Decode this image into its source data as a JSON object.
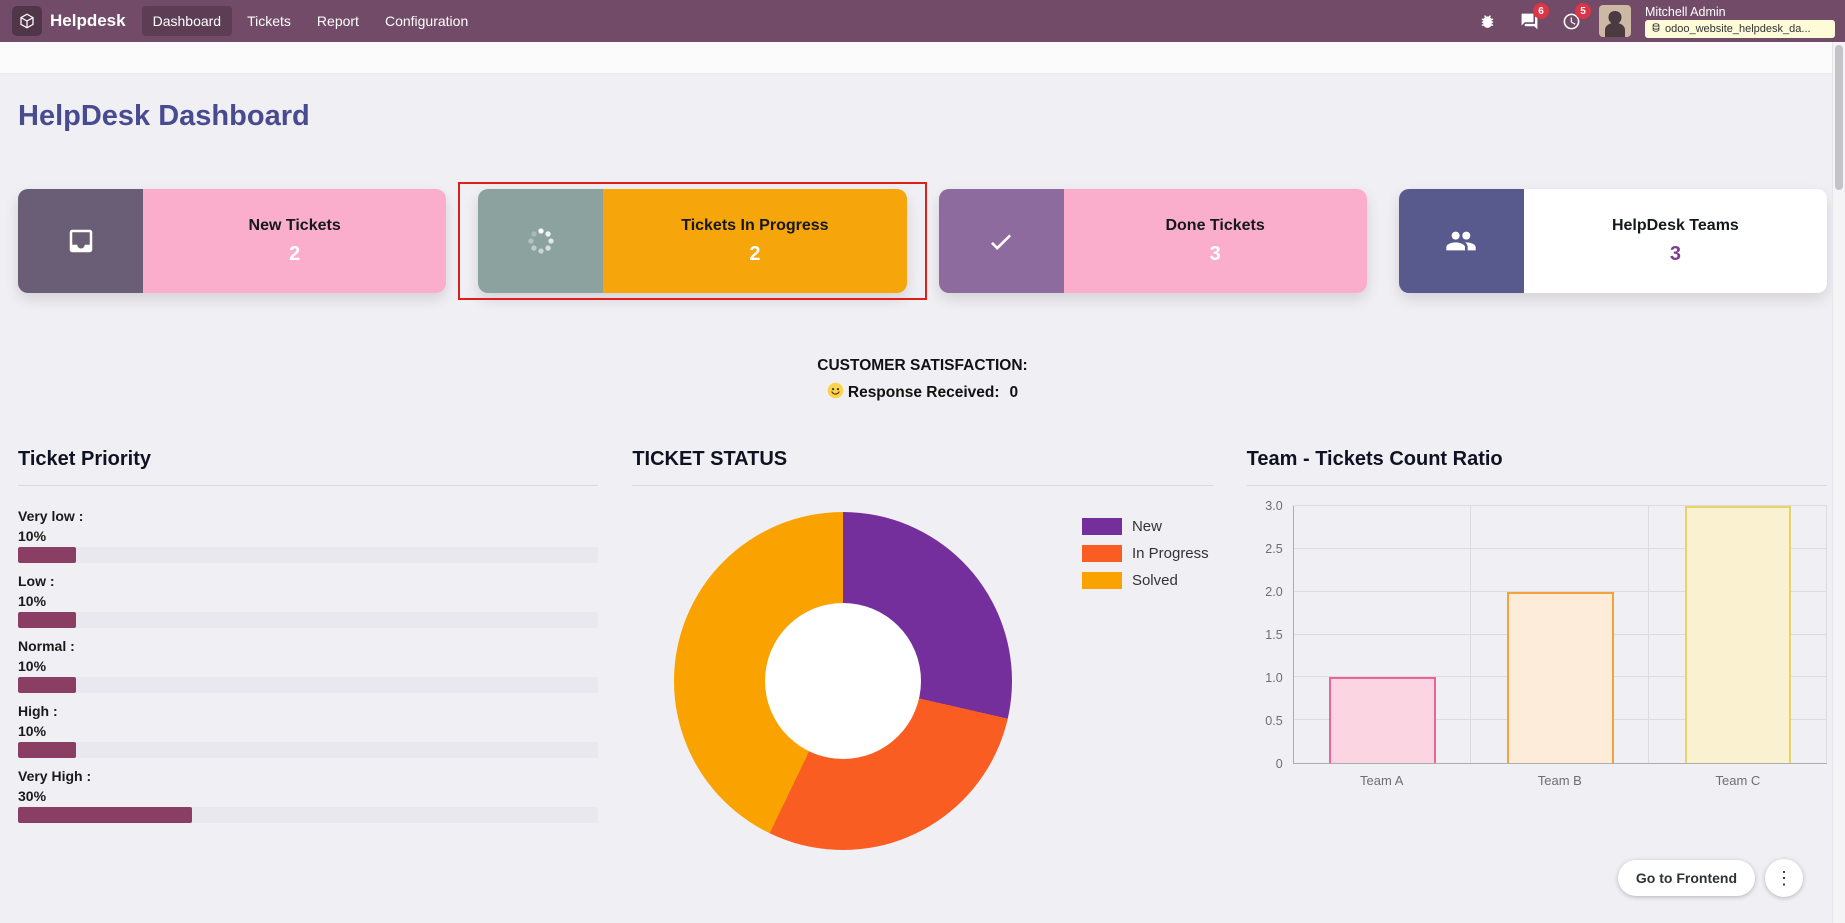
{
  "topbar": {
    "app_name": "Helpdesk",
    "menu": [
      {
        "label": "Dashboard",
        "active": true
      },
      {
        "label": "Tickets",
        "active": false
      },
      {
        "label": "Report",
        "active": false
      },
      {
        "label": "Configuration",
        "active": false
      }
    ],
    "messages_badge": "6",
    "activities_badge": "5",
    "user_name": "Mitchell Admin",
    "database": "odoo_website_helpdesk_da..."
  },
  "page": {
    "title": "HelpDesk Dashboard"
  },
  "cards": [
    {
      "label": "New Tickets",
      "count": "2",
      "icon": "inbox-icon",
      "icon_bg": "#6a5e77",
      "body_bg": "#fbaecb",
      "count_color": "#ffffff",
      "highlight": false
    },
    {
      "label": "Tickets In Progress",
      "count": "2",
      "icon": "spinner-icon",
      "icon_bg": "#8ba29e",
      "body_bg": "#f6a50b",
      "count_color": "#ffffff",
      "highlight": true
    },
    {
      "label": "Done Tickets",
      "count": "3",
      "icon": "check-icon",
      "icon_bg": "#8e6b9e",
      "body_bg": "#fbaecb",
      "count_color": "#ffffff",
      "highlight": false
    },
    {
      "label": "HelpDesk Teams",
      "count": "3",
      "icon": "users-icon",
      "icon_bg": "#585a8d",
      "body_bg": "#ffffff",
      "count_color": "#7e3f8f",
      "highlight": false
    }
  ],
  "satisfaction": {
    "title": "CUSTOMER SATISFACTION:",
    "icon": "smiley-icon",
    "response_label": "Response Received:",
    "response_value": "0"
  },
  "priority_panel": {
    "title": "Ticket Priority",
    "bar_color": "#8a3e63",
    "track_color": "#e8e8ee",
    "items": [
      {
        "label": "Very low :",
        "percent": "10%",
        "value": 10
      },
      {
        "label": "Low :",
        "percent": "10%",
        "value": 10
      },
      {
        "label": "Normal :",
        "percent": "10%",
        "value": 10
      },
      {
        "label": "High :",
        "percent": "10%",
        "value": 10
      },
      {
        "label": "Very High :",
        "percent": "30%",
        "value": 30
      }
    ]
  },
  "chart_data": [
    {
      "type": "pie",
      "donut": true,
      "title": "TICKET STATUS",
      "labels": [
        "New",
        "In Progress",
        "Solved"
      ],
      "values": [
        2,
        2,
        3
      ],
      "colors": [
        "#752f9d",
        "#f95d22",
        "#f9a200"
      ],
      "legend_position": "right"
    },
    {
      "type": "bar",
      "title": "Team - Tickets Count Ratio",
      "categories": [
        "Team A",
        "Team B",
        "Team C"
      ],
      "values": [
        1,
        2,
        3
      ],
      "ylim": [
        0,
        3
      ],
      "yticks": [
        0,
        0.5,
        1,
        1.5,
        2,
        2.5,
        3
      ],
      "ytick_labels": [
        "0",
        "0.5",
        "1.0",
        "1.5",
        "2.0",
        "2.5",
        "3.0"
      ],
      "bar_fill": [
        "#fbd6e2",
        "#fcecd9",
        "#f9f1cf"
      ],
      "bar_border": [
        "#ec6496",
        "#f3a33b",
        "#e7d36c"
      ],
      "grid": true
    }
  ],
  "footer": {
    "frontend_button": "Go to Frontend",
    "menu_icon": "⋮"
  }
}
